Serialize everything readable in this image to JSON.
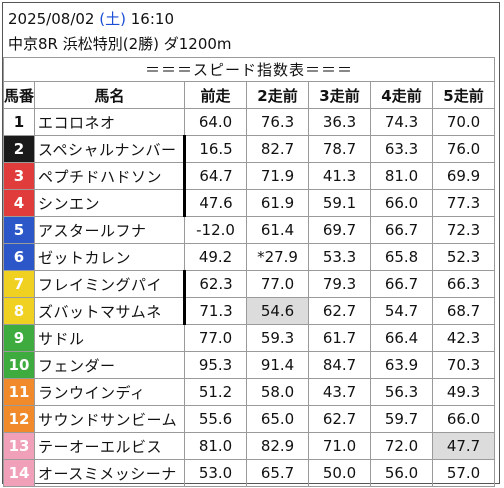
{
  "header": {
    "date": "2025/08/02",
    "dow_open": "(",
    "dow": "土",
    "dow_close": ")",
    "time": "16:10",
    "race": "中京8R 浜松特別(2勝) ダ1200m"
  },
  "table": {
    "title": "＝＝＝スピード指数表＝＝＝",
    "columns": [
      "馬番",
      "馬名",
      "前走",
      "2走前",
      "3走前",
      "4走前",
      "5走前"
    ],
    "rows": [
      {
        "num": "1",
        "color": "#ffffff",
        "text_color": "#111111",
        "name": "エコロネオ",
        "values": [
          "64.0",
          "76.3",
          "36.3",
          "74.3",
          "70.0"
        ],
        "highlight": [
          false,
          false,
          false,
          false,
          false
        ],
        "divider": false
      },
      {
        "num": "2",
        "color": "#1a1a1a",
        "text_color": "#ffffff",
        "name": "スペシャルナンバー",
        "values": [
          "16.5",
          "82.7",
          "78.7",
          "63.3",
          "76.0"
        ],
        "highlight": [
          false,
          false,
          false,
          false,
          false
        ],
        "divider": true
      },
      {
        "num": "3",
        "color": "#e03c3c",
        "text_color": "#ffffff",
        "name": "ペプチドハドソン",
        "values": [
          "64.7",
          "71.9",
          "41.3",
          "81.0",
          "69.9"
        ],
        "highlight": [
          false,
          false,
          false,
          false,
          false
        ],
        "divider": true
      },
      {
        "num": "4",
        "color": "#e03c3c",
        "text_color": "#ffffff",
        "name": "シンエン",
        "values": [
          "47.6",
          "61.9",
          "59.1",
          "66.0",
          "77.3"
        ],
        "highlight": [
          false,
          false,
          false,
          false,
          false
        ],
        "divider": true
      },
      {
        "num": "5",
        "color": "#2b57c9",
        "text_color": "#ffffff",
        "name": "アスタールフナ",
        "values": [
          "-12.0",
          "61.4",
          "69.7",
          "66.7",
          "72.3"
        ],
        "highlight": [
          false,
          false,
          false,
          false,
          false
        ],
        "divider": false
      },
      {
        "num": "6",
        "color": "#2b57c9",
        "text_color": "#ffffff",
        "name": "ゼットカレン",
        "values": [
          "49.2",
          "*27.9",
          "53.3",
          "65.8",
          "52.3"
        ],
        "highlight": [
          false,
          false,
          false,
          false,
          false
        ],
        "divider": false
      },
      {
        "num": "7",
        "color": "#f0d020",
        "text_color": "#ffffff",
        "name": "フレイミングパイ",
        "values": [
          "62.3",
          "77.0",
          "79.3",
          "66.7",
          "66.3"
        ],
        "highlight": [
          false,
          false,
          false,
          false,
          false
        ],
        "divider": true
      },
      {
        "num": "8",
        "color": "#f0d020",
        "text_color": "#ffffff",
        "name": "ズバットマサムネ",
        "values": [
          "71.3",
          "54.6",
          "62.7",
          "54.7",
          "68.7"
        ],
        "highlight": [
          false,
          true,
          false,
          false,
          false
        ],
        "divider": true
      },
      {
        "num": "9",
        "color": "#3eab3e",
        "text_color": "#ffffff",
        "name": "サドル",
        "values": [
          "77.0",
          "59.3",
          "61.7",
          "66.4",
          "42.3"
        ],
        "highlight": [
          false,
          false,
          false,
          false,
          false
        ],
        "divider": false
      },
      {
        "num": "10",
        "color": "#3eab3e",
        "text_color": "#ffffff",
        "name": "フェンダー",
        "values": [
          "95.3",
          "91.4",
          "84.7",
          "63.9",
          "70.3"
        ],
        "highlight": [
          false,
          false,
          false,
          false,
          false
        ],
        "divider": false
      },
      {
        "num": "11",
        "color": "#f08a2a",
        "text_color": "#ffffff",
        "name": "ランウインディ",
        "values": [
          "51.2",
          "58.0",
          "43.7",
          "56.3",
          "49.3"
        ],
        "highlight": [
          false,
          false,
          false,
          false,
          false
        ],
        "divider": false
      },
      {
        "num": "12",
        "color": "#f08a2a",
        "text_color": "#ffffff",
        "name": "サウンドサンビーム",
        "values": [
          "55.6",
          "65.0",
          "62.7",
          "59.7",
          "66.0"
        ],
        "highlight": [
          false,
          false,
          false,
          false,
          false
        ],
        "divider": false
      },
      {
        "num": "13",
        "color": "#f0a0b8",
        "text_color": "#ffffff",
        "name": "テーオーエルビス",
        "values": [
          "81.0",
          "82.9",
          "71.0",
          "72.0",
          "47.7"
        ],
        "highlight": [
          false,
          false,
          false,
          false,
          true
        ],
        "divider": false
      },
      {
        "num": "14",
        "color": "#f0a0b8",
        "text_color": "#ffffff",
        "name": "オースミメッシーナ",
        "values": [
          "53.0",
          "65.7",
          "50.0",
          "56.0",
          "57.0"
        ],
        "highlight": [
          false,
          false,
          false,
          false,
          false
        ],
        "divider": false
      }
    ]
  }
}
